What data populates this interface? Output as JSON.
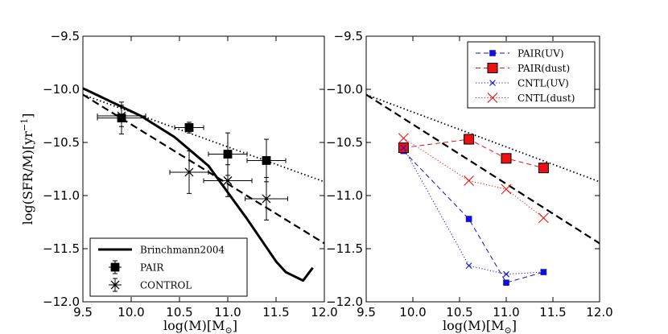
{
  "chart_data": [
    {
      "type": "line",
      "xlabel_text": "log(M)[M",
      "xlabel_sub": "⊙",
      "xlabel_close": "]",
      "ylabel_text": "log(SFR/M)[yr",
      "ylabel_sup": "−1",
      "ylabel_close": "]",
      "xlim": [
        9.5,
        12.0
      ],
      "ylim": [
        -12.0,
        -9.5
      ],
      "xticks": [
        "9.5",
        "10.0",
        "10.5",
        "11.0",
        "11.5",
        "12.0"
      ],
      "yticks": [
        "−9.5",
        "−10.0",
        "−10.5",
        "−11.0",
        "−11.5",
        "−12.0"
      ],
      "legend_position": "lower-left",
      "series": [
        {
          "name": "Brinchmann2004",
          "style": "solid-thick",
          "x": [
            9.5,
            9.8,
            10.1,
            10.45,
            10.8,
            11.0,
            11.2,
            11.35,
            11.5,
            11.6,
            11.78,
            11.88
          ],
          "y": [
            -9.99,
            -10.12,
            -10.25,
            -10.45,
            -10.72,
            -10.97,
            -11.22,
            -11.42,
            -11.62,
            -11.72,
            -11.8,
            -11.68
          ]
        },
        {
          "name": "",
          "style": "dashed-ref",
          "x": [
            9.5,
            12.0
          ],
          "y": [
            -10.05,
            -11.45
          ]
        },
        {
          "name": "",
          "style": "dotted-ref",
          "x": [
            9.5,
            12.0
          ],
          "y": [
            -10.05,
            -10.87
          ]
        },
        {
          "name": "PAIR",
          "style": "square-errorbar",
          "x": [
            9.9,
            10.6,
            11.0,
            11.4
          ],
          "y": [
            -10.27,
            -10.36,
            -10.61,
            -10.67
          ],
          "xerr": [
            0.25,
            0.15,
            0.2,
            0.2
          ],
          "yerr": [
            0.15,
            0.05,
            0.2,
            0.2
          ]
        },
        {
          "name": "CONTROL",
          "style": "x-errorbar",
          "x": [
            9.9,
            10.6,
            11.0,
            11.4
          ],
          "y": [
            -10.25,
            -10.78,
            -10.86,
            -11.03
          ],
          "xerr": [
            0.25,
            0.2,
            0.25,
            0.22
          ],
          "yerr": [
            0.1,
            0.2,
            0.15,
            0.2
          ]
        }
      ]
    },
    {
      "type": "line",
      "xlabel_text": "log(M)[M",
      "xlabel_sub": "⊙",
      "xlabel_close": "]",
      "xlim": [
        9.5,
        12.0
      ],
      "ylim": [
        -12.0,
        -9.5
      ],
      "xticks": [
        "9.5",
        "10.0",
        "10.5",
        "11.0",
        "11.5",
        "12.0"
      ],
      "yticks": [
        "−9.5",
        "−10.0",
        "−10.5",
        "−11.0",
        "−11.5",
        "−12.0"
      ],
      "legend_position": "top-right",
      "series": [
        {
          "name": "",
          "style": "dashed-ref",
          "x": [
            9.5,
            12.0
          ],
          "y": [
            -10.05,
            -11.45
          ]
        },
        {
          "name": "",
          "style": "dotted-ref",
          "x": [
            9.5,
            12.0
          ],
          "y": [
            -10.05,
            -10.87
          ]
        },
        {
          "name": "PAIR(UV)",
          "style": "blue-dashed-square",
          "x": [
            9.9,
            10.6,
            11.0,
            11.4
          ],
          "y": [
            -10.58,
            -11.22,
            -11.82,
            -11.72
          ]
        },
        {
          "name": "PAIR(dust)",
          "style": "red-dashed-square",
          "x": [
            9.9,
            10.6,
            11.0,
            11.4
          ],
          "y": [
            -10.55,
            -10.47,
            -10.65,
            -10.74
          ]
        },
        {
          "name": "CNTL(UV)",
          "style": "blue-dotted-x",
          "x": [
            9.9,
            10.6,
            11.0,
            11.4
          ],
          "y": [
            -10.55,
            -11.66,
            -11.74,
            -11.72
          ]
        },
        {
          "name": "CNTL(dust)",
          "style": "red-dotted-x",
          "x": [
            9.9,
            10.6,
            11.0,
            11.4
          ],
          "y": [
            -10.46,
            -10.86,
            -10.94,
            -11.21
          ]
        }
      ]
    }
  ]
}
